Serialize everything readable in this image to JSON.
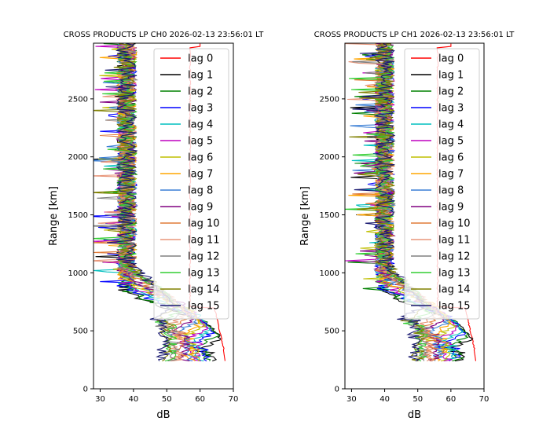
{
  "chart_data": [
    {
      "type": "line",
      "title": "CROSS PRODUCTS LP CH0 2026-02-13 23:56:01 LT",
      "xlabel": "dB",
      "ylabel": "Range [km]",
      "xlim": [
        28,
        70
      ],
      "ylim": [
        0,
        2980
      ],
      "xticks": [
        30,
        40,
        50,
        60,
        70
      ],
      "yticks": [
        0,
        500,
        1000,
        1500,
        2000,
        2500
      ],
      "legend_location": "top-right",
      "series": [
        {
          "name": "lag 0",
          "color": "#ff0000",
          "near_peak_db": 68,
          "noise_db": 57,
          "shift_km": 0
        },
        {
          "name": "lag 1",
          "color": "#000000",
          "near_peak_db": 66,
          "noise_db": 38,
          "shift_km": 20
        },
        {
          "name": "lag 2",
          "color": "#008000",
          "near_peak_db": 65,
          "noise_db": 38,
          "shift_km": 40
        },
        {
          "name": "lag 3",
          "color": "#0000ff",
          "near_peak_db": 64,
          "noise_db": 38,
          "shift_km": 60
        },
        {
          "name": "lag 4",
          "color": "#00bfbf",
          "near_peak_db": 63,
          "noise_db": 38,
          "shift_km": 80
        },
        {
          "name": "lag 5",
          "color": "#bf00bf",
          "near_peak_db": 62,
          "noise_db": 38,
          "shift_km": 100
        },
        {
          "name": "lag 6",
          "color": "#bfbf00",
          "near_peak_db": 61,
          "noise_db": 38,
          "shift_km": 120
        },
        {
          "name": "lag 7",
          "color": "#ffa500",
          "near_peak_db": 60,
          "noise_db": 38,
          "shift_km": 140
        },
        {
          "name": "lag 8",
          "color": "#3a7fd5",
          "near_peak_db": 59,
          "noise_db": 38,
          "shift_km": 160
        },
        {
          "name": "lag 9",
          "color": "#800080",
          "near_peak_db": 58,
          "noise_db": 38,
          "shift_km": 180
        },
        {
          "name": "lag 10",
          "color": "#e07b39",
          "near_peak_db": 57,
          "noise_db": 38,
          "shift_km": 200
        },
        {
          "name": "lag 11",
          "color": "#e8967a",
          "near_peak_db": 56,
          "noise_db": 38,
          "shift_km": 220
        },
        {
          "name": "lag 12",
          "color": "#808080",
          "near_peak_db": 55,
          "noise_db": 38,
          "shift_km": 240
        },
        {
          "name": "lag 13",
          "color": "#32cd32",
          "near_peak_db": 54,
          "noise_db": 38,
          "shift_km": 260
        },
        {
          "name": "lag 14",
          "color": "#808000",
          "near_peak_db": 53,
          "noise_db": 38,
          "shift_km": 280
        },
        {
          "name": "lag 15",
          "color": "#191970",
          "near_peak_db": 52,
          "noise_db": 38,
          "shift_km": 300
        }
      ]
    },
    {
      "type": "line",
      "title": "CROSS PRODUCTS LP CH1 2026-02-13 23:56:01 LT",
      "xlabel": "dB",
      "ylabel": "Range [km]",
      "xlim": [
        28,
        70
      ],
      "ylim": [
        0,
        2980
      ],
      "xticks": [
        30,
        40,
        50,
        60,
        70
      ],
      "yticks": [
        0,
        500,
        1000,
        1500,
        2000,
        2500
      ],
      "legend_location": "top-right",
      "series": [
        {
          "name": "lag 0",
          "color": "#ff0000",
          "near_peak_db": 68,
          "noise_db": 56,
          "shift_km": 0
        },
        {
          "name": "lag 1",
          "color": "#000000",
          "near_peak_db": 66,
          "noise_db": 40,
          "shift_km": 20
        },
        {
          "name": "lag 2",
          "color": "#008000",
          "near_peak_db": 65,
          "noise_db": 40,
          "shift_km": 40
        },
        {
          "name": "lag 3",
          "color": "#0000ff",
          "near_peak_db": 64,
          "noise_db": 40,
          "shift_km": 60
        },
        {
          "name": "lag 4",
          "color": "#00bfbf",
          "near_peak_db": 63,
          "noise_db": 40,
          "shift_km": 80
        },
        {
          "name": "lag 5",
          "color": "#bf00bf",
          "near_peak_db": 62,
          "noise_db": 40,
          "shift_km": 100
        },
        {
          "name": "lag 6",
          "color": "#bfbf00",
          "near_peak_db": 61,
          "noise_db": 40,
          "shift_km": 120
        },
        {
          "name": "lag 7",
          "color": "#ffa500",
          "near_peak_db": 60,
          "noise_db": 40,
          "shift_km": 140
        },
        {
          "name": "lag 8",
          "color": "#3a7fd5",
          "near_peak_db": 59,
          "noise_db": 40,
          "shift_km": 160
        },
        {
          "name": "lag 9",
          "color": "#800080",
          "near_peak_db": 58,
          "noise_db": 40,
          "shift_km": 180
        },
        {
          "name": "lag 10",
          "color": "#e07b39",
          "near_peak_db": 57,
          "noise_db": 40,
          "shift_km": 200
        },
        {
          "name": "lag 11",
          "color": "#e8967a",
          "near_peak_db": 56,
          "noise_db": 40,
          "shift_km": 220
        },
        {
          "name": "lag 12",
          "color": "#808080",
          "near_peak_db": 55,
          "noise_db": 40,
          "shift_km": 240
        },
        {
          "name": "lag 13",
          "color": "#32cd32",
          "near_peak_db": 54,
          "noise_db": 40,
          "shift_km": 260
        },
        {
          "name": "lag 14",
          "color": "#808000",
          "near_peak_db": 53,
          "noise_db": 40,
          "shift_km": 280
        },
        {
          "name": "lag 15",
          "color": "#191970",
          "near_peak_db": 52,
          "noise_db": 40,
          "shift_km": 300
        }
      ]
    }
  ]
}
